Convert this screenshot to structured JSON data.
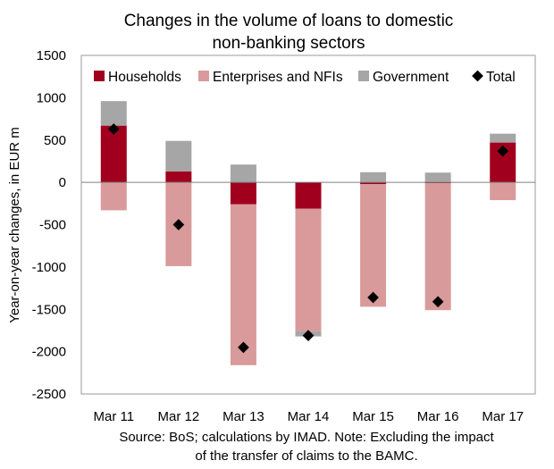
{
  "chart_data": {
    "type": "bar",
    "stacked": true,
    "title_lines": [
      "Changes in the volume of loans to domestic",
      "non-banking sectors"
    ],
    "ylabel": "Year-on-year changes, in EUR m",
    "xlabel": "",
    "ylim": [
      -2500,
      1500
    ],
    "yticks": [
      1500,
      1000,
      500,
      0,
      -500,
      -1000,
      -1500,
      -2000,
      -2500
    ],
    "categories": [
      "Mar 11",
      "Mar 12",
      "Mar 13",
      "Mar 14",
      "Mar 15",
      "Mar 16",
      "Mar 17"
    ],
    "series": [
      {
        "name": "Households",
        "kind": "bar",
        "color": "#a0001e",
        "values": [
          670,
          130,
          -260,
          -310,
          -20,
          -10,
          470
        ]
      },
      {
        "name": "Enterprises and NFIs",
        "kind": "bar",
        "color": "#d99a9b",
        "values": [
          -330,
          -990,
          -1900,
          -1450,
          -1450,
          -1500,
          -210
        ]
      },
      {
        "name": "Government",
        "kind": "bar",
        "color": "#a6a6a6",
        "values": [
          290,
          360,
          210,
          -60,
          120,
          115,
          105
        ]
      },
      {
        "name": "Total",
        "kind": "marker",
        "marker": "diamond",
        "color": "#000000",
        "values": [
          630,
          -500,
          -1950,
          -1810,
          -1360,
          -1410,
          370
        ]
      }
    ],
    "legend_position": "top",
    "grid": false
  },
  "footnote_lines": [
    "Source: BoS; calculations by IMAD. Note: Excluding the impact",
    "of the transfer of claims to the BAMC."
  ]
}
